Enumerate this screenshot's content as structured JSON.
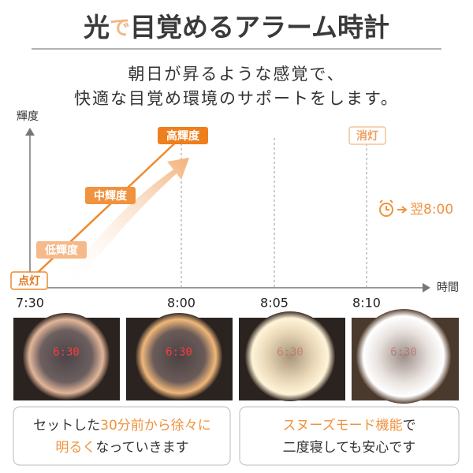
{
  "header": {
    "title_parts": [
      "光",
      "で",
      "目覚めるアラーム時計"
    ],
    "subtitle": [
      "朝日が昇るような感覚で、",
      "快適な目覚め環境のサポートをします。"
    ]
  },
  "graph": {
    "y_axis_label": "輝度",
    "x_axis_label": "時間",
    "x_labels": [
      "7:30",
      "8:00",
      "8:05",
      "8:10"
    ],
    "stages": [
      "点灯",
      "低輝度",
      "中輝度",
      "高輝度",
      "消灯"
    ],
    "alarm": "翌8:00"
  },
  "photos": [
    {
      "display": "6:30"
    },
    {
      "display": "6:30"
    },
    {
      "display": "6:30"
    },
    {
      "display": "6:30"
    }
  ],
  "captions": [
    {
      "lines": [
        [
          "セットした",
          "30分前から徐々に"
        ],
        [
          "明るく",
          "なっていきます"
        ]
      ]
    },
    {
      "lines": [
        [
          "スヌーズモード機能",
          "で"
        ],
        [
          "二度寝しても安心です"
        ]
      ]
    }
  ]
}
